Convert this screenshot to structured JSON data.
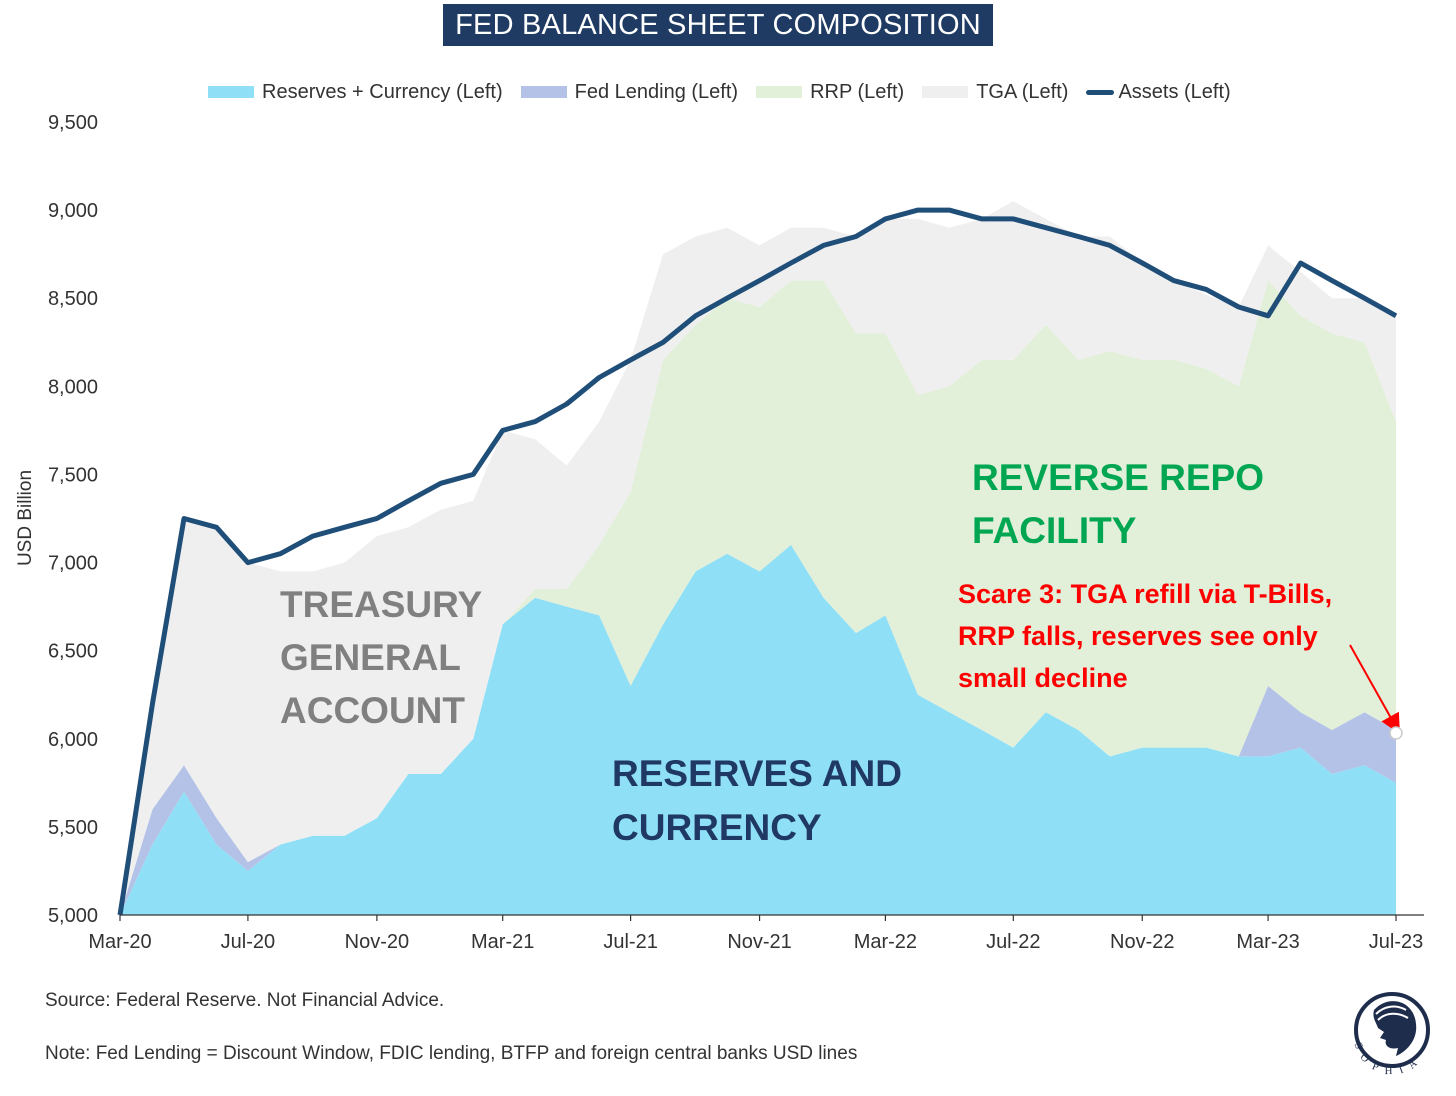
{
  "title": "FED BALANCE SHEET COMPOSITION",
  "legend": [
    {
      "label": "Reserves + Currency (Left)",
      "color": "#8fe0f7",
      "kind": "area"
    },
    {
      "label": "Fed Lending (Left)",
      "color": "#b3c2e6",
      "kind": "area"
    },
    {
      "label": "RRP (Left)",
      "color": "#e2efd9",
      "kind": "area"
    },
    {
      "label": "TGA (Left)",
      "color": "#efefef",
      "kind": "area"
    },
    {
      "label": "Assets (Left)",
      "color": "#1f4e79",
      "kind": "line"
    }
  ],
  "source": "Source: Federal Reserve. Not Financial Advice.",
  "note": "Note: Fed Lending = Discount Window, FDIC lending, BTFP and foreign central banks USD lines",
  "logo": {
    "text": "SOPHIA",
    "icon": "woman-profile-logo"
  },
  "chart_data": {
    "type": "area",
    "ylabel": "USD Billion",
    "ylim": [
      5000,
      9500
    ],
    "yticks": [
      "5,000",
      "5,500",
      "6,000",
      "6,500",
      "7,000",
      "7,500",
      "8,000",
      "8,500",
      "9,000",
      "9,500"
    ],
    "ytick_values": [
      5000,
      5500,
      6000,
      6500,
      7000,
      7500,
      8000,
      8500,
      9000,
      9500
    ],
    "xlim": [
      "2020-03-01",
      "2023-07-01"
    ],
    "xticks": [
      "Mar-20",
      "Jul-20",
      "Nov-20",
      "Mar-21",
      "Jul-21",
      "Nov-21",
      "Mar-22",
      "Jul-22",
      "Nov-22",
      "Mar-23",
      "Jul-23"
    ],
    "xtick_dates": [
      "2020-03-01",
      "2020-07-01",
      "2020-11-01",
      "2021-03-01",
      "2021-07-01",
      "2021-11-01",
      "2022-03-01",
      "2022-07-01",
      "2022-11-01",
      "2023-03-01",
      "2023-07-01"
    ],
    "x": [
      "2020-03-01",
      "2020-04-01",
      "2020-05-01",
      "2020-06-01",
      "2020-07-01",
      "2020-08-01",
      "2020-09-01",
      "2020-10-01",
      "2020-11-01",
      "2020-12-01",
      "2021-01-01",
      "2021-02-01",
      "2021-03-01",
      "2021-04-01",
      "2021-05-01",
      "2021-06-01",
      "2021-07-01",
      "2021-08-01",
      "2021-09-01",
      "2021-10-01",
      "2021-11-01",
      "2021-12-01",
      "2022-01-01",
      "2022-02-01",
      "2022-03-01",
      "2022-04-01",
      "2022-05-01",
      "2022-06-01",
      "2022-07-01",
      "2022-08-01",
      "2022-09-01",
      "2022-10-01",
      "2022-11-01",
      "2022-12-01",
      "2023-01-01",
      "2023-02-01",
      "2023-03-01",
      "2023-04-01",
      "2023-05-01",
      "2023-06-01",
      "2023-07-01"
    ],
    "series": [
      {
        "name": "Reserves + Currency (Left)",
        "color": "#8fe0f7",
        "values": [
          5000,
          5400,
          5700,
          5400,
          5250,
          5400,
          5450,
          5450,
          5550,
          5800,
          5800,
          6000,
          6650,
          6800,
          6750,
          6700,
          6300,
          6650,
          6950,
          7050,
          6950,
          7100,
          6800,
          6600,
          6700,
          6250,
          6150,
          6050,
          5950,
          6150,
          6050,
          5900,
          5950,
          5950,
          5950,
          5900,
          5900,
          5950,
          5800,
          5850,
          5750
        ]
      },
      {
        "name": "Fed Lending (Left)",
        "color": "#b3c2e6",
        "values": [
          0,
          200,
          150,
          150,
          50,
          0,
          0,
          0,
          0,
          0,
          0,
          0,
          0,
          0,
          0,
          0,
          0,
          0,
          0,
          0,
          0,
          0,
          0,
          0,
          0,
          0,
          0,
          0,
          0,
          0,
          0,
          0,
          0,
          0,
          0,
          0,
          400,
          200,
          250,
          300,
          300
        ]
      },
      {
        "name": "RRP (Left)",
        "color": "#e2efd9",
        "values": [
          0,
          0,
          0,
          0,
          0,
          0,
          0,
          0,
          0,
          0,
          0,
          0,
          0,
          50,
          100,
          400,
          1100,
          1500,
          1400,
          1450,
          1500,
          1500,
          1800,
          1700,
          1600,
          1700,
          1850,
          2100,
          2200,
          2200,
          2100,
          2300,
          2200,
          2200,
          2150,
          2100,
          2300,
          2250,
          2250,
          2100,
          1750
        ]
      },
      {
        "name": "TGA (Left)",
        "color": "#efefef",
        "values": [
          0,
          600,
          1400,
          1650,
          1700,
          1550,
          1500,
          1550,
          1600,
          1400,
          1500,
          1350,
          1100,
          850,
          700,
          700,
          750,
          600,
          500,
          400,
          350,
          300,
          300,
          550,
          650,
          1000,
          900,
          800,
          900,
          600,
          700,
          650,
          550,
          450,
          420,
          450,
          200,
          250,
          200,
          250,
          600
        ]
      },
      {
        "name": "Assets (Left)",
        "color": "#1f4e79",
        "values": [
          4300,
          6200,
          7250,
          7200,
          7000,
          7050,
          7150,
          7200,
          7250,
          7350,
          7450,
          7500,
          7750,
          7800,
          7900,
          8050,
          8150,
          8250,
          8400,
          8500,
          8600,
          8700,
          8800,
          8850,
          8950,
          9000,
          9000,
          8950,
          8950,
          8900,
          8850,
          8800,
          8700,
          8600,
          8550,
          8450,
          8400,
          8700,
          8600,
          8500,
          8400
        ]
      }
    ],
    "annotations": [
      {
        "text": "TREASURY",
        "color": "#808080"
      },
      {
        "text": "GENERAL",
        "color": "#808080"
      },
      {
        "text": "ACCOUNT",
        "color": "#808080"
      },
      {
        "text": "RESERVES AND",
        "color": "#1f3864"
      },
      {
        "text": "CURRENCY",
        "color": "#1f3864"
      },
      {
        "text": "REVERSE REPO",
        "color": "#00a651"
      },
      {
        "text": "FACILITY",
        "color": "#00a651"
      },
      {
        "text": "Scare 3: TGA refill via T-Bills,",
        "color": "#ff0000"
      },
      {
        "text": "RRP falls, reserves see only",
        "color": "#ff0000"
      },
      {
        "text": "small decline",
        "color": "#ff0000"
      }
    ],
    "grid": false,
    "legend_position": "top"
  }
}
